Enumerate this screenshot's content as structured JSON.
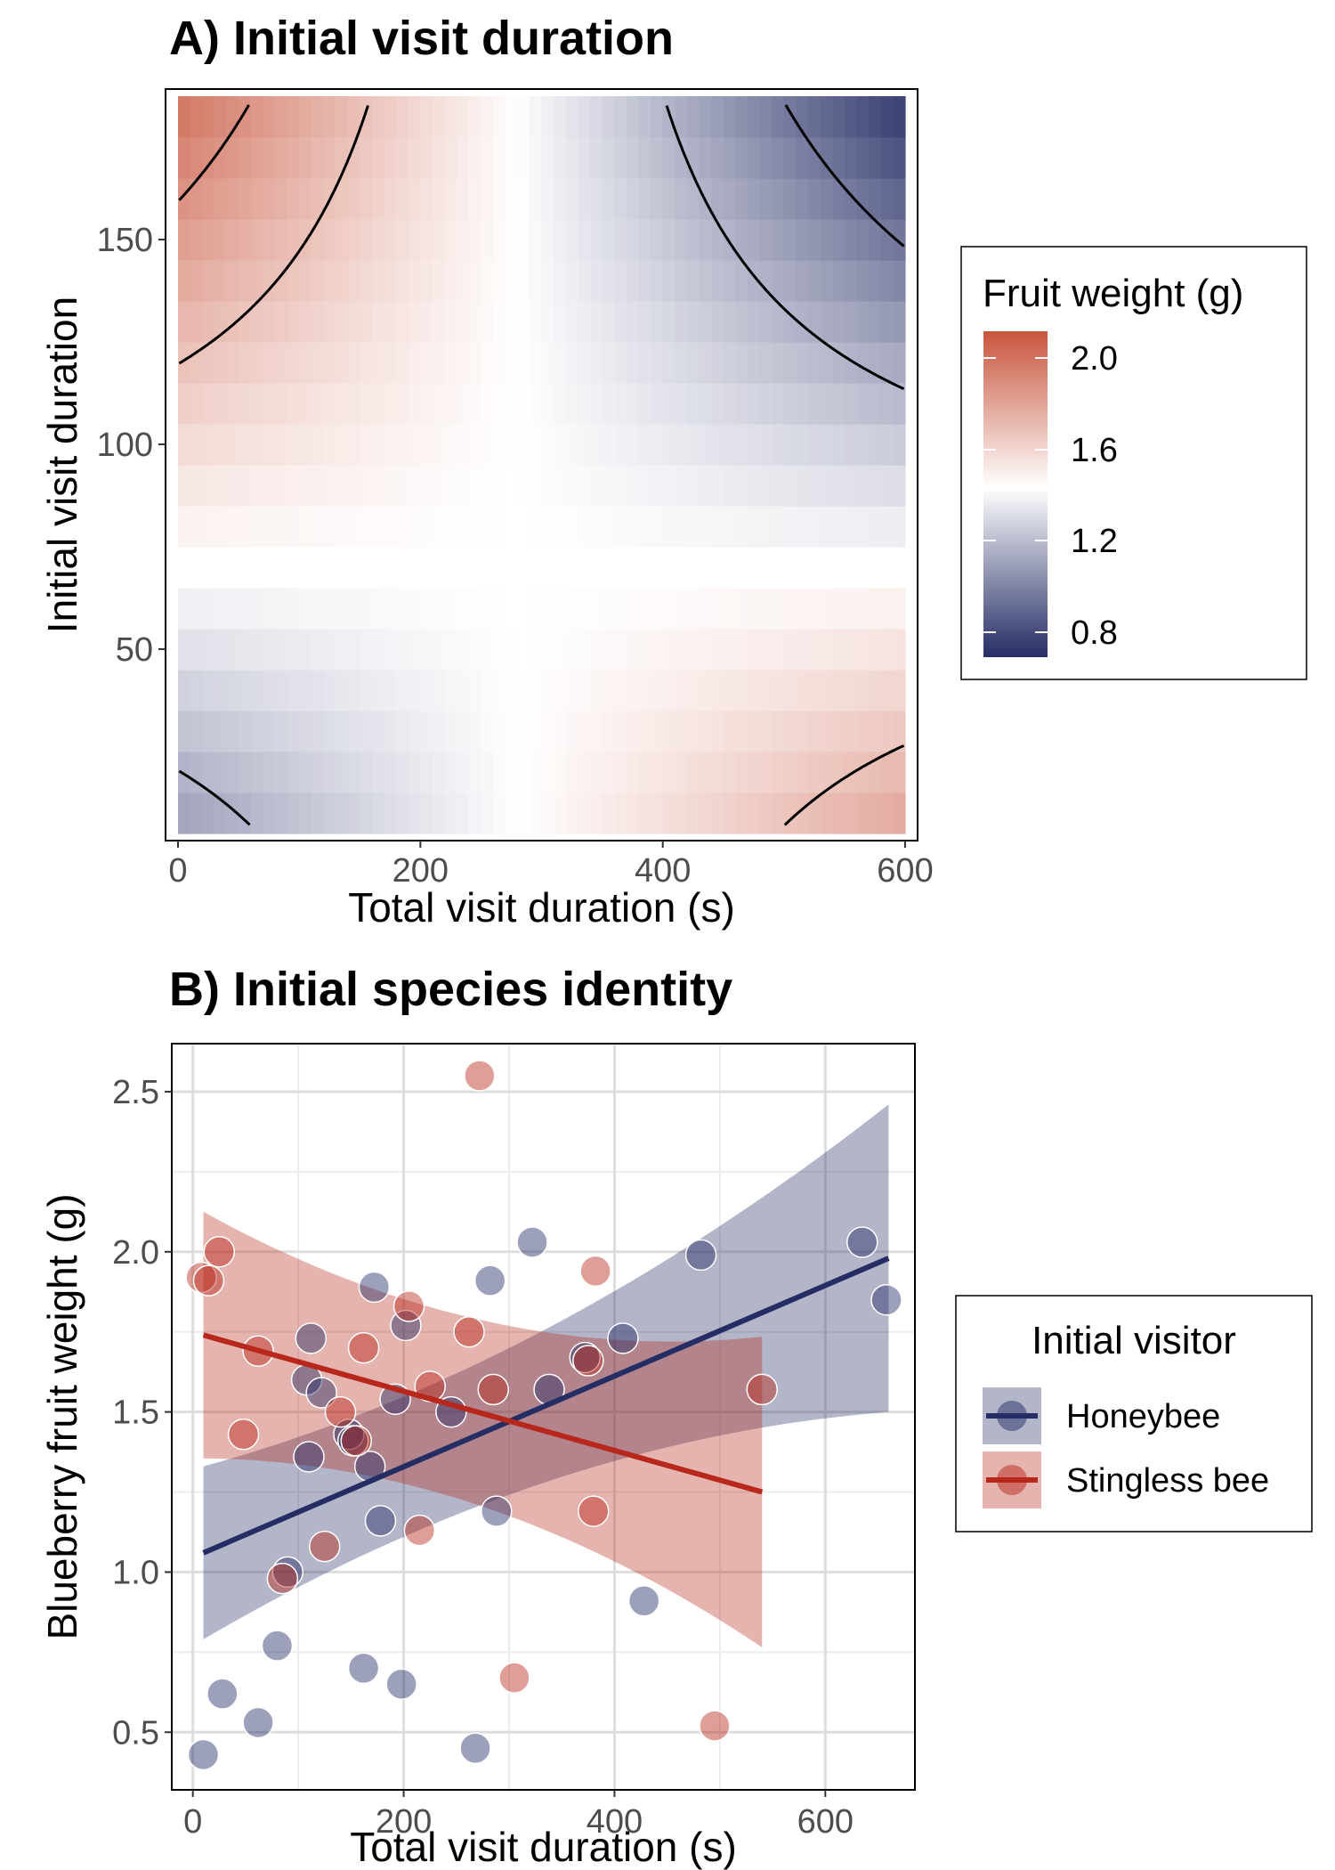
{
  "panels": {
    "a": {
      "title": "A) Initial visit duration"
    },
    "b": {
      "title": "B) Initial species identity"
    }
  },
  "colors": {
    "high": "#c8553d",
    "mid": "#ffffff",
    "low": "#252d65",
    "honeybee": "#252d65",
    "stingless_bee": "#b8271b",
    "grid": "#dddddd"
  },
  "chart_data": [
    {
      "type": "heatmap",
      "title": "A) Initial visit duration",
      "xlabel": "Total visit duration (s)",
      "ylabel": "Initial visit duration",
      "xlim": [
        0,
        600
      ],
      "ylim": [
        5,
        185
      ],
      "x_ticks": [
        0,
        200,
        400,
        600
      ],
      "y_ticks": [
        50,
        100,
        150
      ],
      "legend": {
        "title": "Fruit weight (g)",
        "ticks": [
          "2.0",
          "1.6",
          "1.2",
          "0.8"
        ],
        "position": "right"
      },
      "surface": {
        "center_x": 280,
        "center_y": 70,
        "mid_value": 1.45,
        "formula": "fruit_weight = mid_value - k * (x - center_x) * (y - center_y)",
        "k": 1.8e-05,
        "contour_levels": [
          1.0,
          1.2,
          1.7,
          1.9
        ]
      },
      "grid": false
    },
    {
      "type": "scatter",
      "title": "B) Initial species identity",
      "xlabel": "Total visit duration (s)",
      "ylabel": "Blueberry fruit weight (g)",
      "xlim": [
        -20,
        685
      ],
      "ylim": [
        0.32,
        2.65
      ],
      "x_ticks": [
        0,
        200,
        400,
        600
      ],
      "y_ticks": [
        0.5,
        1.0,
        1.5,
        2.0,
        2.5
      ],
      "grid": true,
      "legend": {
        "title": "Initial visitor",
        "position": "right"
      },
      "series": [
        {
          "name": "Honeybee",
          "x": [
            10,
            28,
            62,
            80,
            90,
            108,
            110,
            112,
            122,
            148,
            152,
            162,
            168,
            172,
            178,
            192,
            198,
            202,
            245,
            268,
            282,
            288,
            322,
            338,
            372,
            408,
            428,
            482,
            635,
            658
          ],
          "y": [
            0.43,
            0.62,
            0.53,
            0.77,
            1.0,
            1.6,
            1.36,
            1.73,
            1.56,
            1.43,
            1.41,
            0.7,
            1.33,
            1.89,
            1.16,
            1.54,
            0.65,
            1.77,
            1.5,
            0.45,
            1.91,
            1.19,
            2.03,
            1.57,
            1.67,
            1.73,
            0.91,
            1.99,
            2.03,
            1.85
          ],
          "fit": {
            "x": [
              10,
              660
            ],
            "y": [
              1.06,
              1.98
            ]
          },
          "ci_lower": [
            0.79,
            1.5
          ],
          "ci_upper": [
            1.33,
            2.46
          ]
        },
        {
          "name": "Stingless bee",
          "x": [
            8,
            15,
            25,
            48,
            62,
            85,
            125,
            140,
            155,
            162,
            205,
            215,
            225,
            262,
            272,
            285,
            305,
            375,
            380,
            382,
            495,
            540
          ],
          "y": [
            1.92,
            1.91,
            2.0,
            1.43,
            1.69,
            0.98,
            1.08,
            1.5,
            1.41,
            1.7,
            1.83,
            1.13,
            1.58,
            1.75,
            2.55,
            1.57,
            0.67,
            1.66,
            1.19,
            1.94,
            0.52,
            1.57
          ],
          "fit": {
            "x": [
              10,
              540
            ],
            "y": [
              1.74,
              1.25
            ]
          },
          "ci_lower": [
            1.35,
            0.77
          ],
          "ci_upper": [
            2.12,
            1.74
          ]
        }
      ]
    }
  ]
}
